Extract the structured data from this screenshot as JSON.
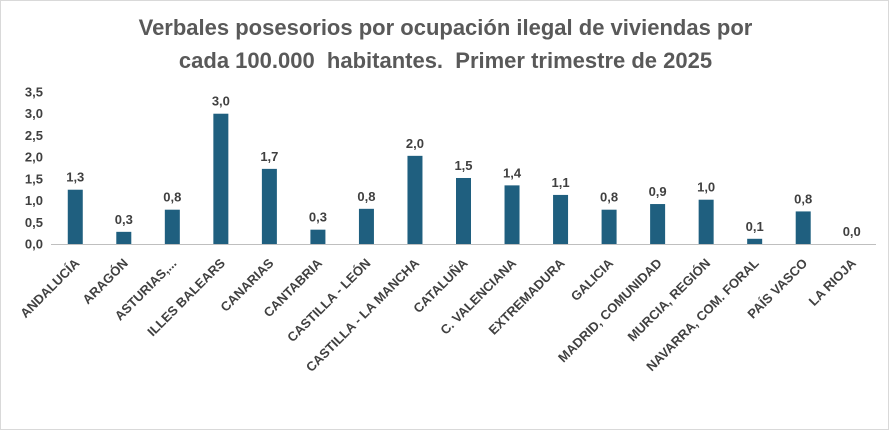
{
  "chart_data": {
    "type": "bar",
    "title_lines": [
      "Verbales posesorios por ocupación ilegal de viviendas por",
      "cada 100.000  habitantes.  Primer trimestre de 2025"
    ],
    "categories": [
      "ANDALUCÍA",
      "ARAGÓN",
      "ASTURIAS,...",
      "ILLES BALEARS",
      "CANARIAS",
      "CANTABRIA",
      "CASTILLA - LEÓN",
      "CASTILLA - LA MANCHA",
      "CATALUÑA",
      "C. VALENCIANA",
      "EXTREMADURA",
      "GALICIA",
      "MADRID, COMUNIDAD",
      "MURCIA, REGIÓN",
      "NAVARRA, COM. FORAL",
      "PAÍS VASCO",
      "LA RIOJA"
    ],
    "values": [
      1.25,
      0.28,
      0.79,
      3.0,
      1.73,
      0.33,
      0.81,
      2.03,
      1.52,
      1.35,
      1.13,
      0.79,
      0.92,
      1.02,
      0.12,
      0.75,
      0.0
    ],
    "data_labels": [
      "1,3",
      "0,3",
      "0,8",
      "3,0",
      "1,7",
      "0,3",
      "0,8",
      "2,0",
      "1,5",
      "1,4",
      "1,1",
      "0,8",
      "0,9",
      "1,0",
      "0,1",
      "0,8",
      "0,0"
    ],
    "y_ticks": [
      "0,0",
      "0,5",
      "1,0",
      "1,5",
      "2,0",
      "2,5",
      "3,0",
      "3,5"
    ],
    "y_tick_values": [
      0,
      0.5,
      1.0,
      1.5,
      2.0,
      2.5,
      3.0,
      3.5
    ],
    "ylim": [
      0,
      3.5
    ],
    "xlabel": "",
    "ylabel": "",
    "grid": false,
    "legend": "none",
    "bar_color": "#1F5F7F",
    "axis_color": "#bfbfbf",
    "text_color": "#404040",
    "title_color": "#595959"
  }
}
